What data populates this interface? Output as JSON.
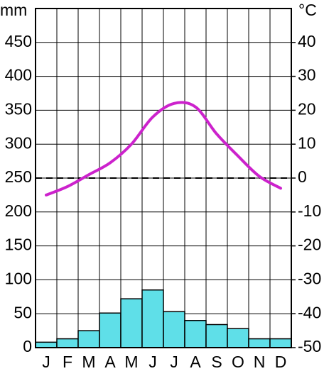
{
  "chart_data": {
    "type": "combo",
    "y_label": "mm",
    "y2_label": "°C",
    "categories": [
      "J",
      "F",
      "M",
      "A",
      "M",
      "J",
      "J",
      "A",
      "S",
      "O",
      "N",
      "D"
    ],
    "series": [
      {
        "type": "bar",
        "color": "#5fdfe8",
        "values": [
          8,
          13,
          25,
          51,
          72,
          85,
          53,
          40,
          34,
          28,
          13,
          13
        ]
      },
      {
        "type": "line",
        "axis": "y2",
        "color": "#cc22cc",
        "values": [
          -5,
          -2.5,
          1,
          4.5,
          10,
          18,
          22,
          21,
          13,
          6.5,
          0.5,
          -3
        ]
      }
    ],
    "ylim": [
      0,
      500
    ],
    "yticks": [
      0,
      50,
      100,
      150,
      200,
      250,
      300,
      350,
      400,
      450
    ],
    "y2lim": [
      -50,
      50
    ],
    "y2ticks": [
      -50,
      -40,
      -30,
      -20,
      -10,
      0,
      10,
      20,
      30,
      40
    ],
    "reference_lines": [
      {
        "axis": "y2",
        "value": 0,
        "style": "dashed"
      }
    ],
    "grid": true
  }
}
